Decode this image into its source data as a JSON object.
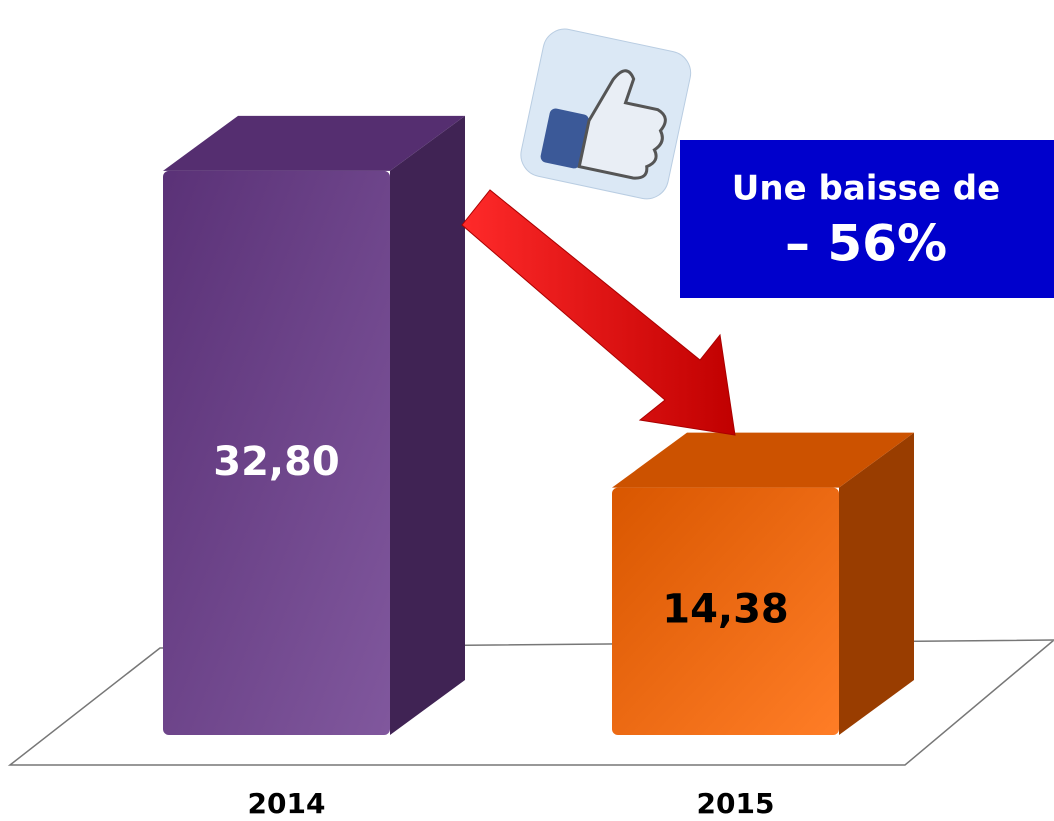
{
  "chart_data": {
    "type": "bar3d",
    "categories": [
      "2014",
      "2015"
    ],
    "values": [
      32.8,
      14.38
    ],
    "value_labels": [
      "32,80",
      "14,38"
    ],
    "colors": [
      "#6a3a8c",
      "#ff6600"
    ],
    "value_label_colors": [
      "#ffffff",
      "#000000"
    ],
    "annotations": [
      "Une baisse de",
      "– 56%"
    ]
  }
}
